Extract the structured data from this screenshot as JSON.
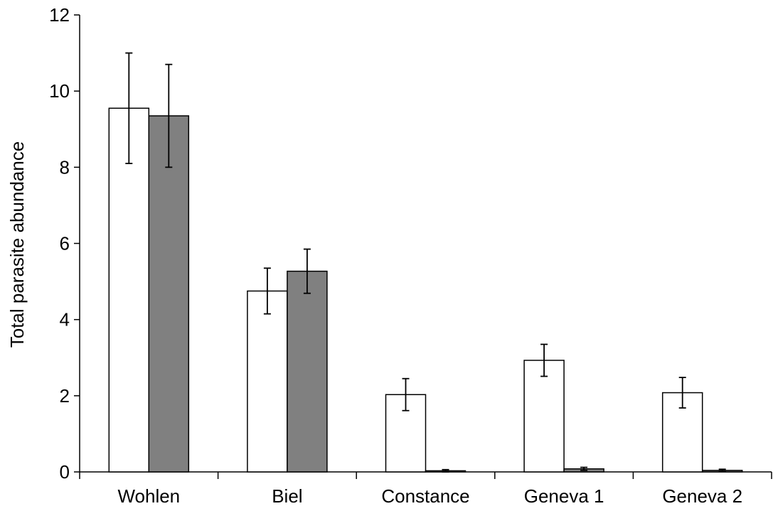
{
  "chart_data": {
    "type": "bar",
    "title": "",
    "xlabel": "",
    "ylabel": "Total parasite abundance",
    "ylim": [
      0,
      12
    ],
    "yticks": [
      0,
      2,
      4,
      6,
      8,
      10,
      12
    ],
    "grid": false,
    "legend": "none",
    "categories": [
      "Wohlen",
      "Biel",
      "Constance",
      "Geneva 1",
      "Geneva 2"
    ],
    "series": [
      {
        "color": "#ffffff",
        "values": [
          9.55,
          4.75,
          2.03,
          2.93,
          2.08
        ],
        "errors": [
          1.45,
          0.6,
          0.42,
          0.42,
          0.4
        ]
      },
      {
        "color": "#808080",
        "values": [
          9.35,
          5.27,
          0.03,
          0.08,
          0.04
        ],
        "errors": [
          1.35,
          0.58,
          0.03,
          0.04,
          0.03
        ]
      }
    ]
  }
}
